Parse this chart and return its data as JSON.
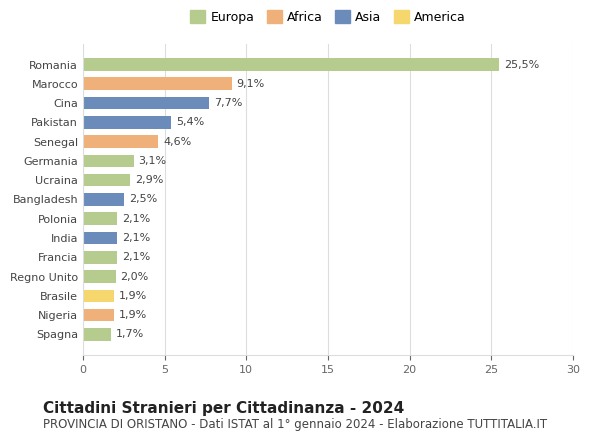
{
  "countries": [
    "Romania",
    "Marocco",
    "Cina",
    "Pakistan",
    "Senegal",
    "Germania",
    "Ucraina",
    "Bangladesh",
    "Polonia",
    "India",
    "Francia",
    "Regno Unito",
    "Brasile",
    "Nigeria",
    "Spagna"
  ],
  "values": [
    25.5,
    9.1,
    7.7,
    5.4,
    4.6,
    3.1,
    2.9,
    2.5,
    2.1,
    2.1,
    2.1,
    2.0,
    1.9,
    1.9,
    1.7
  ],
  "labels": [
    "25,5%",
    "9,1%",
    "7,7%",
    "5,4%",
    "4,6%",
    "3,1%",
    "2,9%",
    "2,5%",
    "2,1%",
    "2,1%",
    "2,1%",
    "2,0%",
    "1,9%",
    "1,9%",
    "1,7%"
  ],
  "continents": [
    "Europa",
    "Africa",
    "Asia",
    "Asia",
    "Africa",
    "Europa",
    "Europa",
    "Asia",
    "Europa",
    "Asia",
    "Europa",
    "Europa",
    "America",
    "Africa",
    "Europa"
  ],
  "colors": {
    "Europa": "#b5cc8e",
    "Africa": "#f0b07a",
    "Asia": "#6b8cba",
    "America": "#f5d76e"
  },
  "legend_order": [
    "Europa",
    "Africa",
    "Asia",
    "America"
  ],
  "xlim": [
    0,
    30
  ],
  "xticks": [
    0,
    5,
    10,
    15,
    20,
    25,
    30
  ],
  "title": "Cittadini Stranieri per Cittadinanza - 2024",
  "subtitle": "PROVINCIA DI ORISTANO - Dati ISTAT al 1° gennaio 2024 - Elaborazione TUTTITALIA.IT",
  "title_fontsize": 11,
  "subtitle_fontsize": 8.5,
  "label_fontsize": 8,
  "tick_fontsize": 8,
  "legend_fontsize": 9,
  "background_color": "#ffffff",
  "grid_color": "#dddddd",
  "bar_height": 0.65
}
